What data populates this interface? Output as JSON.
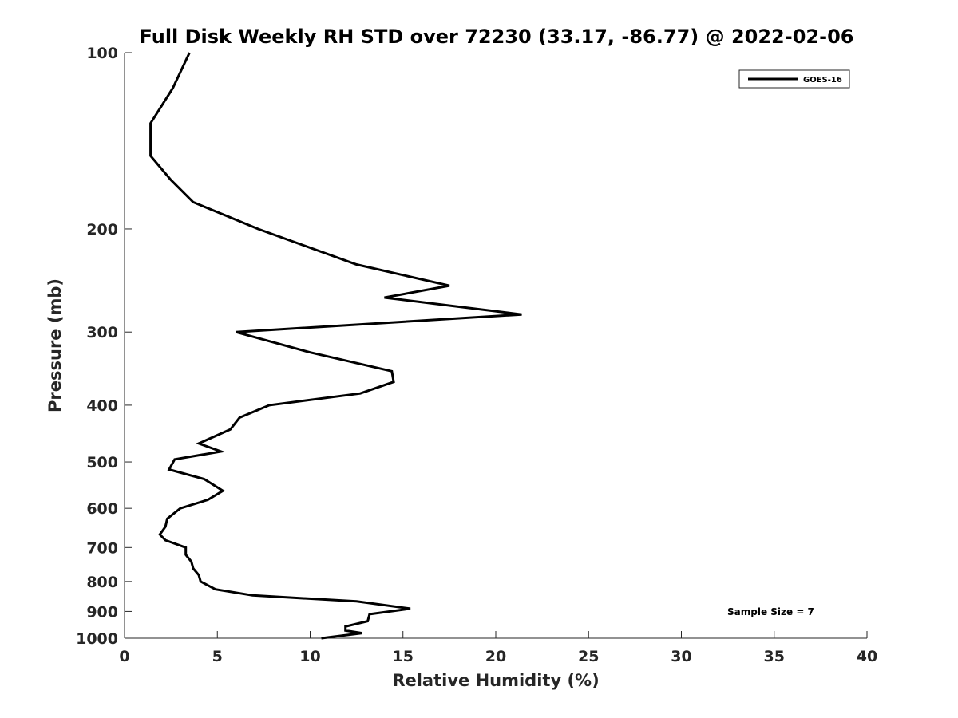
{
  "chart_data": {
    "type": "line",
    "title": "Full Disk Weekly RH STD over 72230 (33.17, -86.77) @ 2022-02-06",
    "xlabel": "Relative Humidity (%)",
    "ylabel": "Pressure (mb)",
    "xlim": [
      0,
      40
    ],
    "ylim": [
      100,
      1000
    ],
    "yscale": "log",
    "ydirection": "reversed",
    "grid": false,
    "x_ticks": [
      0,
      5,
      10,
      15,
      20,
      25,
      30,
      35,
      40
    ],
    "y_ticks": [
      100,
      200,
      300,
      400,
      500,
      600,
      700,
      800,
      900,
      1000
    ],
    "legend": {
      "position": "top-right",
      "entries": [
        "GOES-16"
      ]
    },
    "annotation": "Sample Size = 7",
    "series": [
      {
        "name": "GOES-16",
        "color": "#000000",
        "x": [
          3.5,
          2.6,
          1.4,
          1.4,
          2.5,
          3.7,
          5.5,
          7.2,
          12.5,
          17.5,
          14.0,
          21.4,
          6.0,
          10.0,
          14.4,
          14.5,
          12.7,
          7.8,
          6.2,
          5.7,
          4.0,
          5.2,
          2.7,
          2.4,
          4.3,
          5.3,
          4.5,
          3.0,
          2.3,
          2.2,
          1.9,
          2.2,
          3.3,
          3.3,
          3.6,
          3.7,
          4.0,
          4.1,
          4.9,
          6.9,
          12.5,
          15.4,
          13.2,
          13.1,
          11.9,
          11.9,
          12.8,
          10.6
        ],
        "y": [
          100,
          115,
          132,
          150,
          165,
          180,
          190,
          200,
          230,
          250,
          262,
          280,
          300,
          325,
          350,
          365,
          382,
          400,
          420,
          440,
          465,
          480,
          495,
          515,
          535,
          560,
          580,
          600,
          625,
          645,
          665,
          680,
          700,
          720,
          740,
          760,
          780,
          800,
          825,
          845,
          865,
          890,
          910,
          935,
          955,
          970,
          980,
          1000
        ]
      }
    ]
  }
}
